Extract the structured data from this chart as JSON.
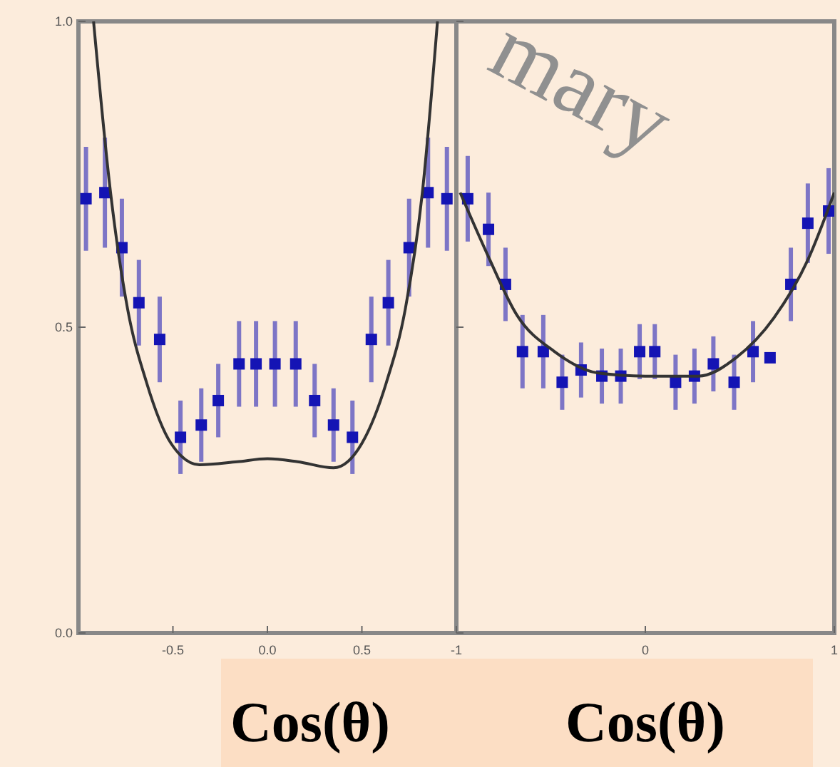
{
  "chart_data": [
    {
      "type": "scatter",
      "xlabel": "Cos(θ)",
      "xlim": [
        -1,
        1
      ],
      "ylim": [
        0,
        1
      ],
      "xticks": [
        -0.5,
        {
          "value": 0,
          "label": "0.0"
        },
        0.5
      ],
      "yticks": [
        {
          "value": 0,
          "label": "0.0"
        },
        0.5,
        {
          "value": 1,
          "label": "1.0"
        }
      ],
      "grid": false,
      "marker": "square",
      "series": [
        {
          "type": "scatter",
          "color": "#1414b4",
          "x": [
            -0.96,
            -0.86,
            -0.77,
            -0.68,
            -0.57,
            -0.46,
            -0.35,
            -0.26,
            -0.15,
            -0.06,
            0.04,
            0.15,
            0.25,
            0.35,
            0.45,
            0.55,
            0.64,
            0.75,
            0.85,
            0.95
          ],
          "values": [
            0.71,
            0.72,
            0.63,
            0.54,
            0.48,
            0.32,
            0.34,
            0.38,
            0.44,
            0.44,
            0.44,
            0.44,
            0.38,
            0.34,
            0.32,
            0.48,
            0.54,
            0.63,
            0.72,
            0.71
          ],
          "errors": [
            0.085,
            0.09,
            0.08,
            0.07,
            0.07,
            0.06,
            0.06,
            0.06,
            0.07,
            0.07,
            0.07,
            0.07,
            0.06,
            0.06,
            0.06,
            0.07,
            0.07,
            0.08,
            0.09,
            0.085
          ]
        },
        {
          "type": "line",
          "color": "#333333",
          "marker": "none",
          "line_style": "solid",
          "x": [
            -0.92,
            -0.83,
            -0.74,
            -0.64,
            -0.51,
            -0.36,
            -0.16,
            0,
            0.16,
            0.35,
            0.5,
            0.63,
            0.73,
            0.82,
            0.9
          ],
          "values": [
            1,
            0.72,
            0.53,
            0.41,
            0.31,
            0.275,
            0.28,
            0.285,
            0.28,
            0.27,
            0.31,
            0.41,
            0.53,
            0.72,
            1
          ]
        }
      ]
    },
    {
      "type": "scatter",
      "xlabel": "Cos(θ)",
      "xlim": [
        -1,
        1
      ],
      "ylim": [
        0,
        1
      ],
      "xticks": [
        -1,
        0,
        1
      ],
      "yticks": [
        0,
        0.5,
        1
      ],
      "tick_labels": "x",
      "grid": false,
      "marker": "square",
      "annotations": [
        "mary"
      ],
      "series": [
        {
          "type": "scatter",
          "color": "#1414b4",
          "x": [
            -0.94,
            -0.83,
            -0.74,
            -0.65,
            -0.54,
            -0.44,
            -0.34,
            -0.23,
            -0.13,
            -0.03,
            0.05,
            0.16,
            0.26,
            0.36,
            0.47,
            0.57,
            0.66,
            0.77,
            0.86,
            0.97
          ],
          "values": [
            0.71,
            0.66,
            0.57,
            0.46,
            0.46,
            0.41,
            0.43,
            0.42,
            0.42,
            0.46,
            0.46,
            0.41,
            0.42,
            0.44,
            0.41,
            0.46,
            0.45,
            0.57,
            0.67,
            0.69
          ],
          "errors": [
            0.07,
            0.06,
            0.06,
            0.06,
            0.06,
            0.045,
            0.045,
            0.045,
            0.045,
            0.045,
            0.045,
            0.045,
            0.045,
            0.045,
            0.045,
            0.05,
            null,
            0.06,
            0.065,
            0.07
          ]
        },
        {
          "type": "line",
          "color": "#333333",
          "marker": "none",
          "line_style": "solid",
          "x": [
            -0.98,
            -0.83,
            -0.68,
            -0.48,
            -0.25,
            0,
            0.28,
            0.48,
            0.68,
            0.86,
            1
          ],
          "values": [
            0.72,
            0.615,
            0.52,
            0.46,
            0.425,
            0.42,
            0.42,
            0.45,
            0.515,
            0.61,
            0.72
          ]
        }
      ]
    }
  ]
}
